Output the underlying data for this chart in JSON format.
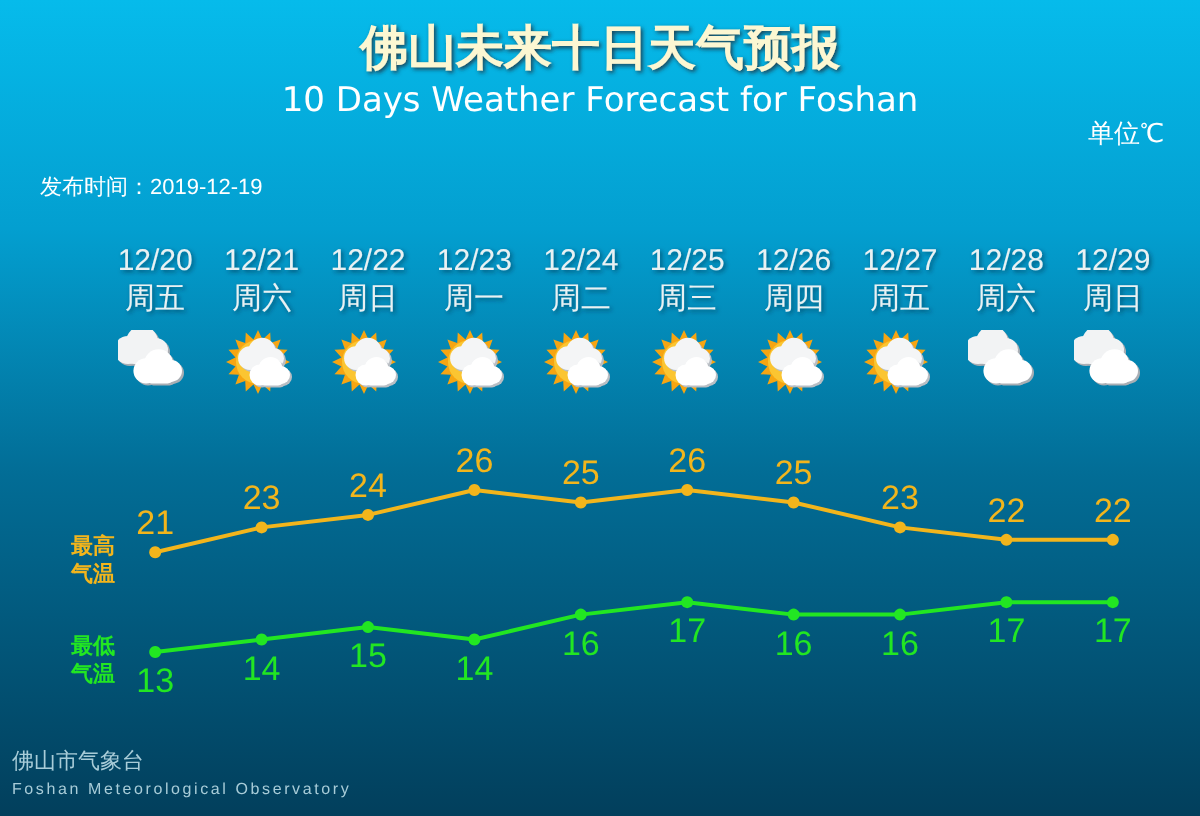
{
  "chart_data": {
    "type": "line",
    "title": "佛山未来十日天气预报",
    "subtitle": "10 Days Weather Forecast for Foshan",
    "annotations": [
      "单位℃",
      "发布时间：2019-12-19",
      "佛山市气象台",
      "Foshan Meteorological Observatory"
    ],
    "categories": [
      "12/20\n周五",
      "12/21\n周六",
      "12/22\n周日",
      "12/23\n周一",
      "12/24\n周二",
      "12/25\n周三",
      "12/26\n周四",
      "12/27\n周五",
      "12/28\n周六",
      "12/29\n周日"
    ],
    "series": [
      {
        "name": "最高气温",
        "color": "#f2b51c",
        "values": [
          21,
          23,
          24,
          26,
          25,
          26,
          25,
          23,
          22,
          22
        ]
      },
      {
        "name": "最低气温",
        "color": "#22e622",
        "values": [
          13,
          14,
          15,
          14,
          16,
          17,
          16,
          16,
          17,
          17
        ]
      }
    ],
    "data_labels": true,
    "marker": "circle",
    "line_style": "solid",
    "legend": "left",
    "grid": false,
    "tick_labels": "x"
  }
}
